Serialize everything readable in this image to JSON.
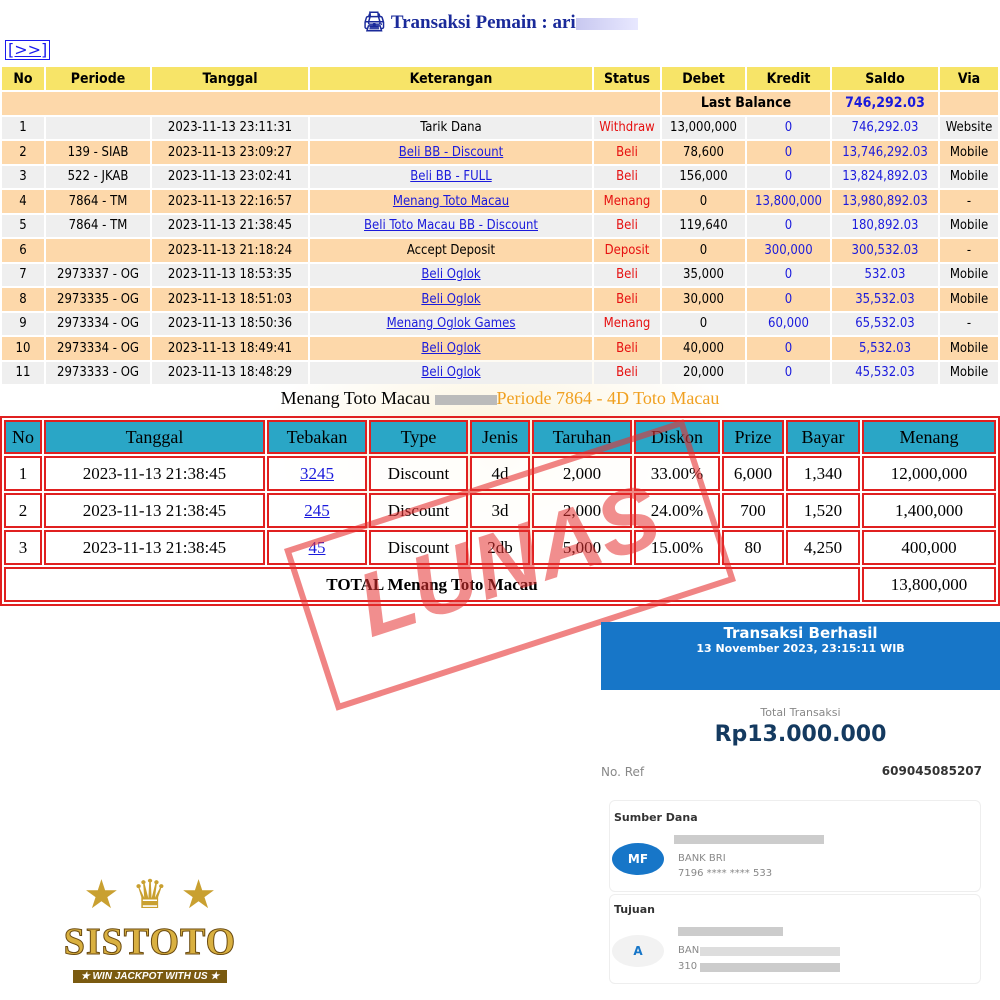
{
  "header": {
    "title": "Transaksi   Pemain : ari",
    "nav_link": "[>>]",
    "icon": "printer-icon"
  },
  "transactions": {
    "columns": [
      "No",
      "Periode",
      "Tanggal",
      "Keterangan",
      "Status",
      "Debet",
      "Kredit",
      "Saldo",
      "Via"
    ],
    "last_balance_label": "Last Balance",
    "last_balance_value": "746,292.03",
    "rows": [
      {
        "no": "1",
        "periode": "",
        "tanggal": "2023-11-13 23:11:31",
        "ket": "Tarik Dana",
        "link": false,
        "status": "Withdraw",
        "debet": "13,000,000",
        "kredit": "0",
        "saldo": "746,292.03",
        "via": "Website"
      },
      {
        "no": "2",
        "periode": "139 - SIAB",
        "tanggal": "2023-11-13 23:09:27",
        "ket": "Beli BB - Discount",
        "link": true,
        "status": "Beli",
        "debet": "78,600",
        "kredit": "0",
        "saldo": "13,746,292.03",
        "via": "Mobile"
      },
      {
        "no": "3",
        "periode": "522 - JKAB",
        "tanggal": "2023-11-13 23:02:41",
        "ket": "Beli BB - FULL",
        "link": true,
        "status": "Beli",
        "debet": "156,000",
        "kredit": "0",
        "saldo": "13,824,892.03",
        "via": "Mobile"
      },
      {
        "no": "4",
        "periode": "7864 - TM",
        "tanggal": "2023-11-13 22:16:57",
        "ket": "Menang Toto Macau",
        "link": true,
        "status": "Menang",
        "debet": "0",
        "kredit": "13,800,000",
        "saldo": "13,980,892.03",
        "via": "-"
      },
      {
        "no": "5",
        "periode": "7864 - TM",
        "tanggal": "2023-11-13 21:38:45",
        "ket": "Beli Toto Macau BB - Discount",
        "link": true,
        "status": "Beli",
        "debet": "119,640",
        "kredit": "0",
        "saldo": "180,892.03",
        "via": "Mobile"
      },
      {
        "no": "6",
        "periode": "",
        "tanggal": "2023-11-13 21:18:24",
        "ket": "Accept Deposit",
        "link": false,
        "status": "Deposit",
        "debet": "0",
        "kredit": "300,000",
        "saldo": "300,532.03",
        "via": "-"
      },
      {
        "no": "7",
        "periode": "2973337 - OG",
        "tanggal": "2023-11-13 18:53:35",
        "ket": "Beli Oglok",
        "link": true,
        "status": "Beli",
        "debet": "35,000",
        "kredit": "0",
        "saldo": "532.03",
        "via": "Mobile"
      },
      {
        "no": "8",
        "periode": "2973335 - OG",
        "tanggal": "2023-11-13 18:51:03",
        "ket": "Beli Oglok",
        "link": true,
        "status": "Beli",
        "debet": "30,000",
        "kredit": "0",
        "saldo": "35,532.03",
        "via": "Mobile"
      },
      {
        "no": "9",
        "periode": "2973334 - OG",
        "tanggal": "2023-11-13 18:50:36",
        "ket": "Menang Oglok Games",
        "link": true,
        "status": "Menang",
        "debet": "0",
        "kredit": "60,000",
        "saldo": "65,532.03",
        "via": "-"
      },
      {
        "no": "10",
        "periode": "2973334 - OG",
        "tanggal": "2023-11-13 18:49:41",
        "ket": "Beli Oglok",
        "link": true,
        "status": "Beli",
        "debet": "40,000",
        "kredit": "0",
        "saldo": "5,532.03",
        "via": "Mobile"
      },
      {
        "no": "11",
        "periode": "2973333 - OG",
        "tanggal": "2023-11-13 18:48:29",
        "ket": "Beli Oglok",
        "link": true,
        "status": "Beli",
        "debet": "20,000",
        "kredit": "0",
        "saldo": "45,532.03",
        "via": "Mobile"
      }
    ]
  },
  "win": {
    "caption_left": "Menang Toto Macau",
    "caption_right": "Periode 7864 - 4D Toto Macau",
    "columns": [
      "No",
      "Tanggal",
      "Tebakan",
      "Type",
      "Jenis",
      "Taruhan",
      "Diskon",
      "Prize",
      "Bayar",
      "Menang"
    ],
    "rows": [
      {
        "no": "1",
        "tanggal": "2023-11-13 21:38:45",
        "tebakan": "3245",
        "type": "Discount",
        "jenis": "4d",
        "taruhan": "2,000",
        "diskon": "33.00%",
        "prize": "6,000",
        "bayar": "1,340",
        "menang": "12,000,000"
      },
      {
        "no": "2",
        "tanggal": "2023-11-13 21:38:45",
        "tebakan": "245",
        "type": "Discount",
        "jenis": "3d",
        "taruhan": "2,000",
        "diskon": "24.00%",
        "prize": "700",
        "bayar": "1,520",
        "menang": "1,400,000"
      },
      {
        "no": "3",
        "tanggal": "2023-11-13 21:38:45",
        "tebakan": "45",
        "type": "Discount",
        "jenis": "2db",
        "taruhan": "5,000",
        "diskon": "15.00%",
        "prize": "80",
        "bayar": "4,250",
        "menang": "400,000"
      }
    ],
    "total_label": "TOTAL  Menang Toto Macau",
    "total_value": "13,800,000"
  },
  "stamp": "LUNAS",
  "receipt": {
    "title": "Transaksi Berhasil",
    "datetime": "13 November 2023, 23:15:11 WIB",
    "total_label": "Total Transaksi",
    "total_value": "Rp13.000.000",
    "ref_label": "No. Ref",
    "ref_value": "609045085207",
    "source_label": "Sumber Dana",
    "source_initials": "MF",
    "source_bank": "BANK BRI",
    "source_account": "7196 **** **** 533",
    "dest_label": "Tujuan",
    "dest_initials": "A",
    "dest_bank": "BAN",
    "dest_account": "310"
  },
  "logo": {
    "name": "SISTOTO",
    "tagline": "WIN JACKPOT WITH US"
  },
  "colors": {
    "header_yellow": "#f7e468",
    "row_peach": "#fdd8aa",
    "row_grey": "#efefef",
    "link_blue": "#1a1adc",
    "status_red": "#e61010",
    "win_header": "#2aa6c6",
    "border_red": "#e02020",
    "receipt_blue": "#1776c8"
  }
}
